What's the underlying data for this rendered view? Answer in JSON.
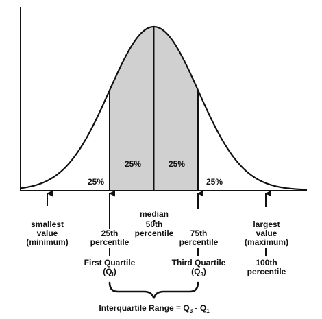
{
  "percent_labels": {
    "left_tail": "25%",
    "inner_left": "25%",
    "inner_right": "25%",
    "right_tail": "25%"
  },
  "markers": {
    "minimum": {
      "line1": "smallest",
      "line2": "value",
      "line3": "(minimum)"
    },
    "q1": {
      "line1": "25th",
      "line2": "percentile",
      "name": "First Quartile",
      "symbol_main": "(Q",
      "symbol_sub": "l",
      "symbol_close": ")"
    },
    "median": {
      "line1": "median",
      "line2": "50th",
      "line3": "percentile"
    },
    "q3": {
      "line1": "75th",
      "line2": "percentile",
      "name": "Third Quartile",
      "symbol_main": "(Q",
      "symbol_sub": "3",
      "symbol_close": ")"
    },
    "maximum": {
      "line1": "largest",
      "line2": "value",
      "line3": "(maximum)",
      "line4": "100th",
      "line5": "percentile"
    }
  },
  "iqr": {
    "prefix": "Interquartile Range = Q",
    "sub1": "3",
    "minus": " - Q",
    "sub2": "1"
  },
  "colors": {
    "shaded_region": "#d0d0d0",
    "ink": "#111111"
  }
}
